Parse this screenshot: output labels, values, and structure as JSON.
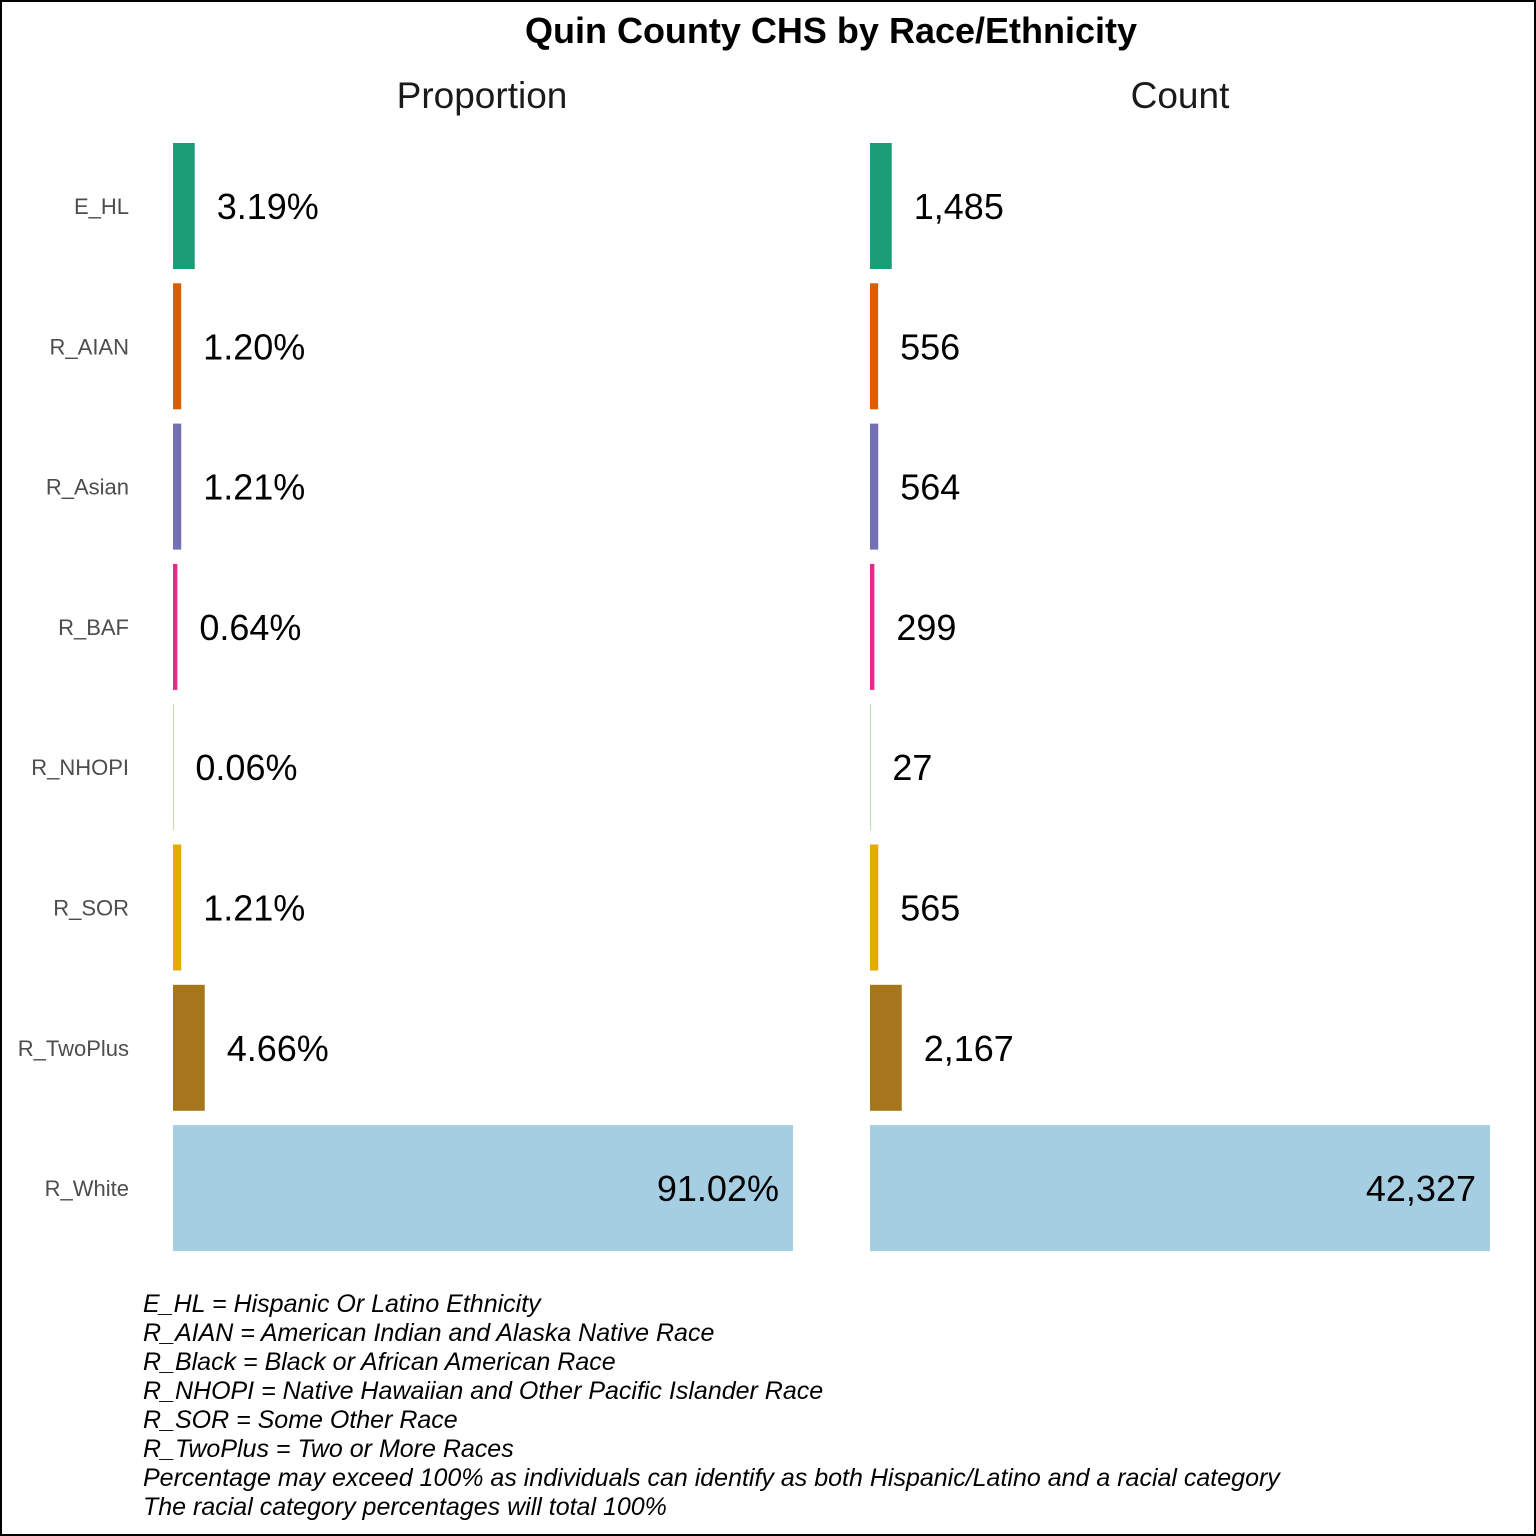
{
  "colors": {
    "E_HL": "#1b9e77",
    "R_AIAN": "#d95f02",
    "R_Asian": "#7570b3",
    "R_BAF": "#e7298a",
    "R_NHOPI": "#66a61e",
    "R_SOR": "#e6ab02",
    "R_TwoPlus": "#a6761d",
    "R_White": "#a6cee3"
  },
  "chart_data": {
    "type": "bar",
    "orientation": "horizontal",
    "title": "Quin County CHS by Race/Ethnicity",
    "categories": [
      "E_HL",
      "R_AIAN",
      "R_Asian",
      "R_BAF",
      "R_NHOPI",
      "R_SOR",
      "R_TwoPlus",
      "R_White"
    ],
    "panels": [
      {
        "title": "Proportion",
        "values": [
          3.19,
          1.2,
          1.21,
          0.64,
          0.06,
          1.21,
          4.66,
          91.02
        ],
        "labels": [
          "3.19%",
          "1.20%",
          "1.21%",
          "0.64%",
          "0.06%",
          "1.21%",
          "4.66%",
          "91.02%"
        ],
        "xlim": [
          0,
          91.02
        ]
      },
      {
        "title": "Count",
        "values": [
          1485,
          556,
          564,
          299,
          27,
          565,
          2167,
          42327
        ],
        "labels": [
          "1,485",
          "556",
          "564",
          "299",
          "27",
          "565",
          "2,167",
          "42,327"
        ],
        "xlim": [
          0,
          42327
        ]
      }
    ],
    "grid": false,
    "legend": "none"
  },
  "footnotes": [
    "E_HL = Hispanic Or Latino Ethnicity",
    "R_AIAN = American Indian and Alaska Native Race",
    "R_Black = Black or African American Race",
    "R_NHOPI = Native Hawaiian and Other Pacific Islander Race",
    "R_SOR = Some Other Race",
    "R_TwoPlus = Two or More Races",
    "Percentage may exceed 100% as individuals can identify as both Hispanic/Latino and a racial category",
    "The racial category percentages will total 100%"
  ]
}
